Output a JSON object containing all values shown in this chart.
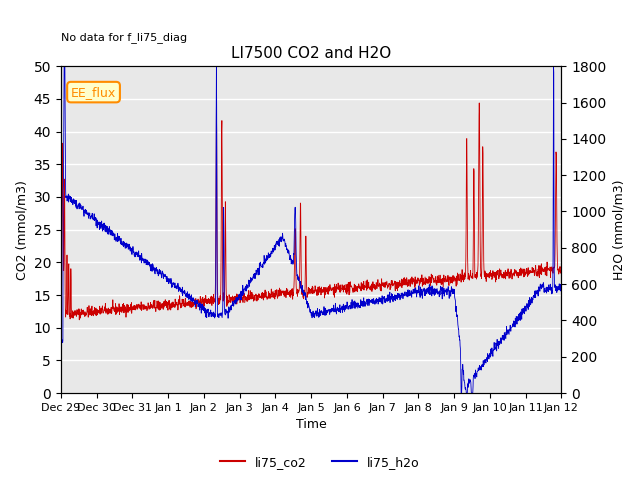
{
  "title": "LI7500 CO2 and H2O",
  "subtitle": "No data for f_li75_diag",
  "xlabel": "Time",
  "ylabel_left": "CO2 (mmol/m3)",
  "ylabel_right": "H2O (mmol/m3)",
  "ylim_left": [
    0,
    50
  ],
  "ylim_right": [
    0,
    1800
  ],
  "xtick_labels": [
    "Dec 29",
    "Dec 30",
    "Dec 31",
    "Jan 1",
    "Jan 2",
    "Jan 3",
    "Jan 4",
    "Jan 5",
    "Jan 6",
    "Jan 7",
    "Jan 8",
    "Jan 9",
    "Jan 10",
    "Jan 11",
    "Jan 12"
  ],
  "legend_label_co2": "li75_co2",
  "legend_label_h2o": "li75_h2o",
  "ee_flux_label": "EE_flux",
  "color_co2": "#cc0000",
  "color_h2o": "#0000cc",
  "plot_bg_color": "#e8e8e8",
  "grid_color": "#ffffff",
  "seed": 42
}
